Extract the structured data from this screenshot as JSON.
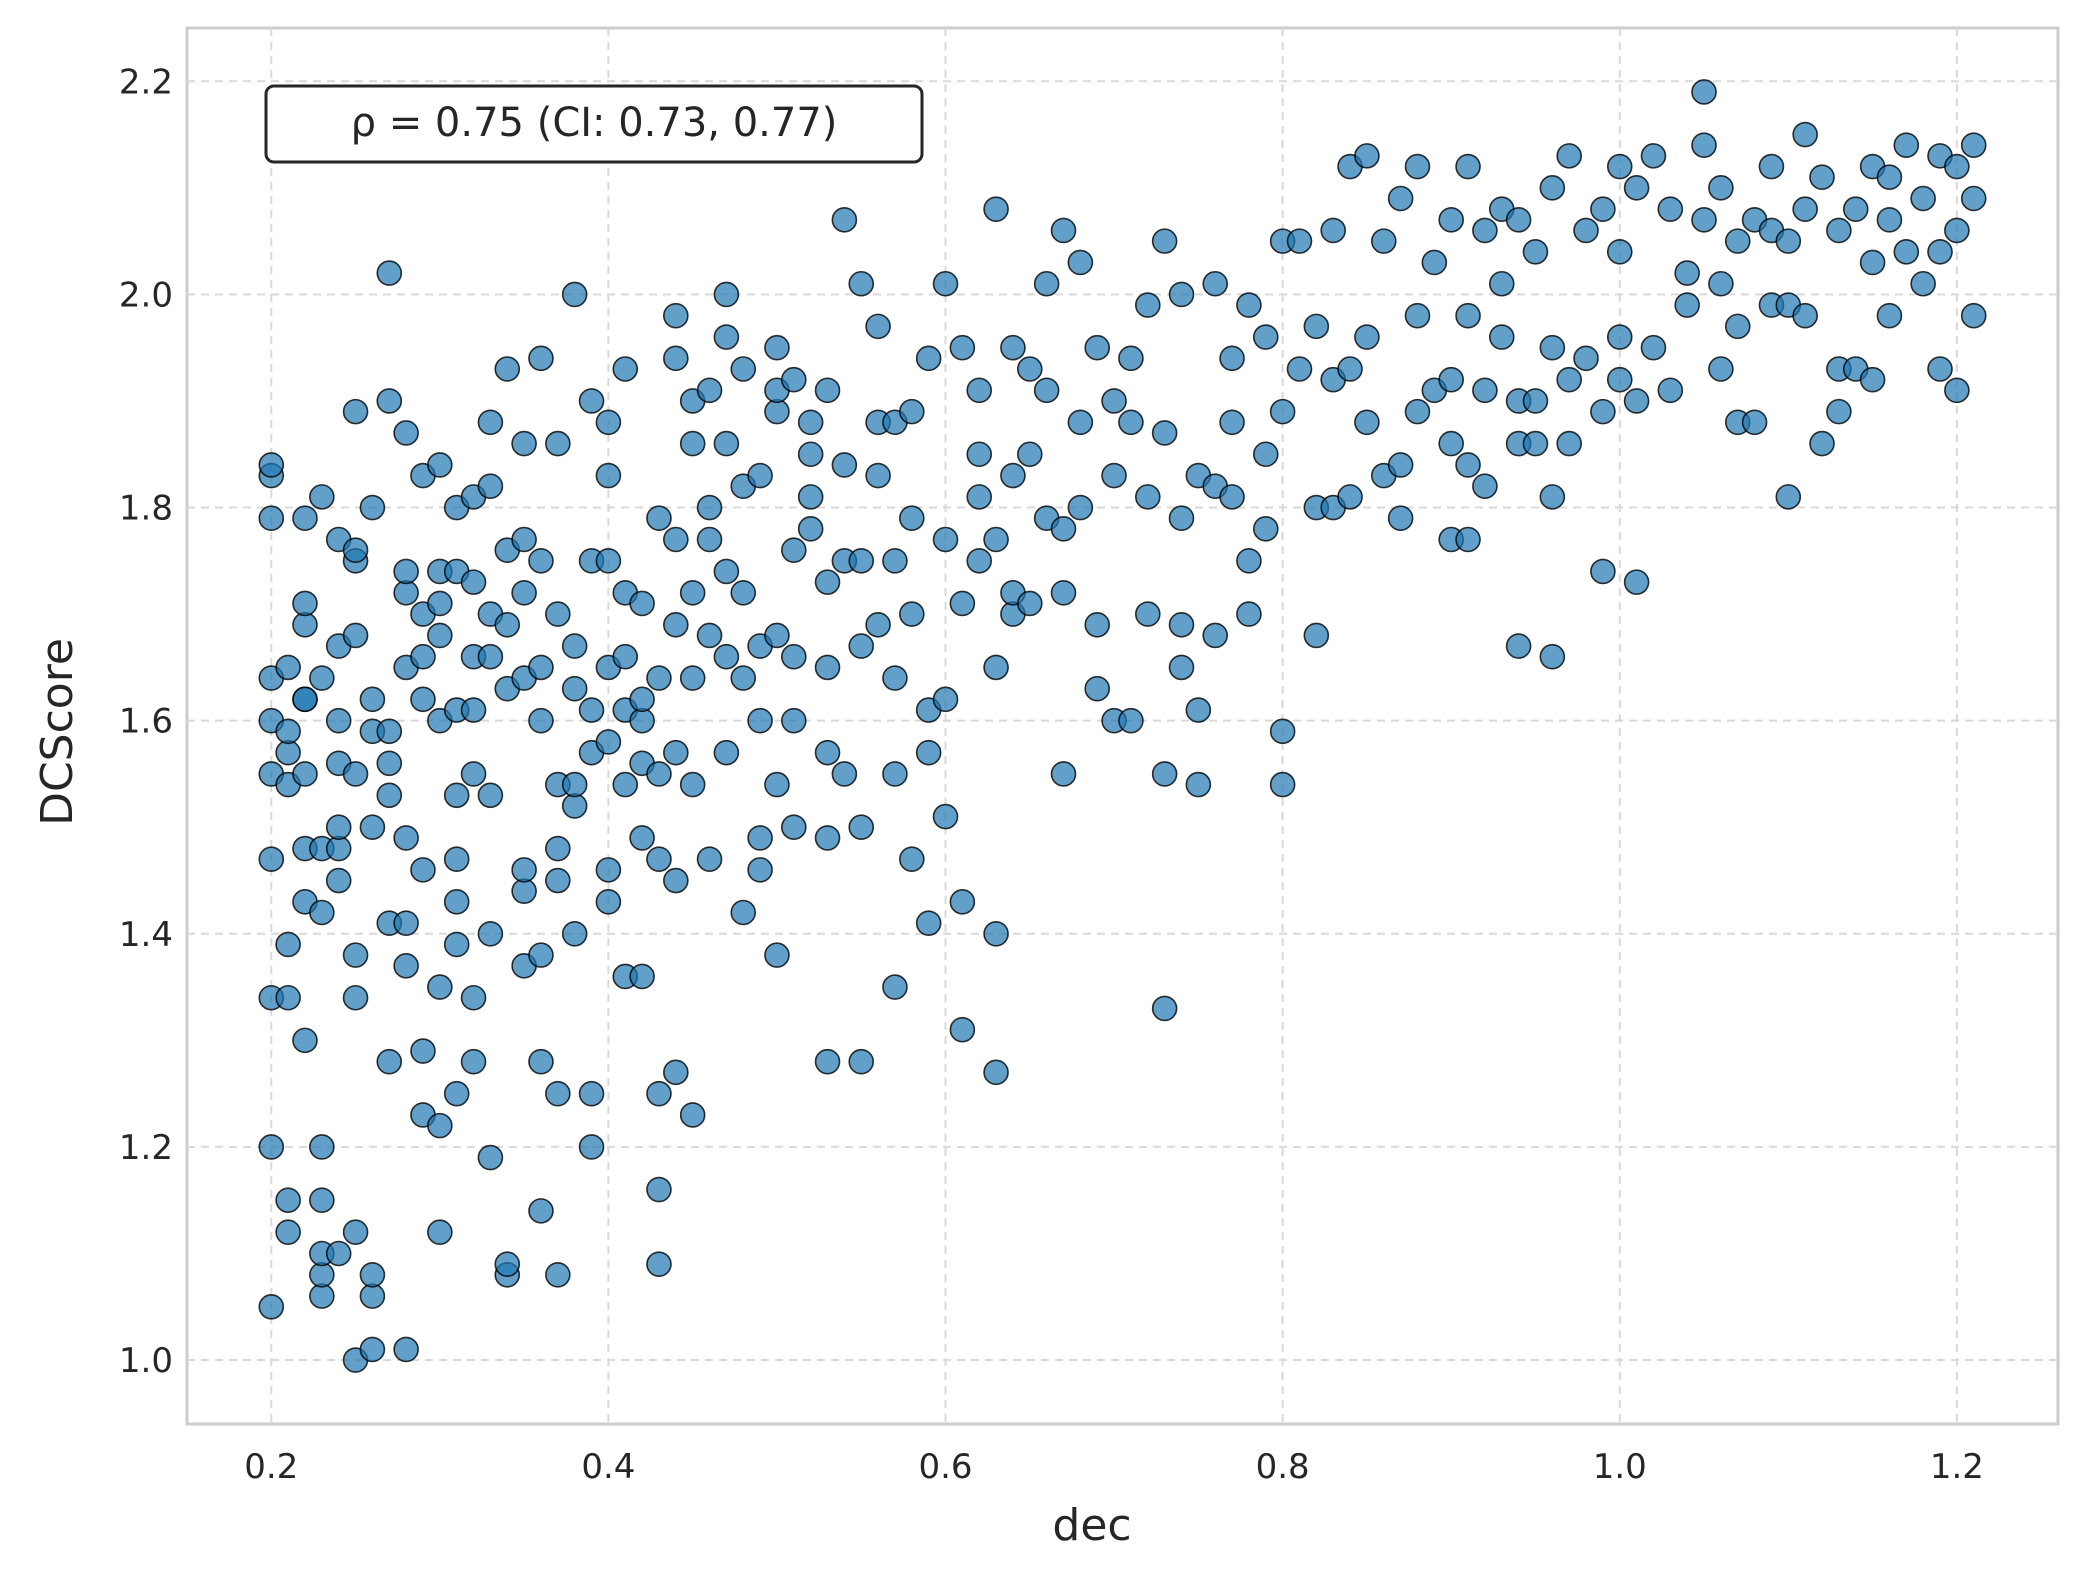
{
  "chart_data": {
    "type": "scatter",
    "title": "",
    "xlabel": "dec",
    "ylabel": "DCScore",
    "xlim": [
      0.15,
      1.26
    ],
    "ylim": [
      0.94,
      2.25
    ],
    "x_ticks": [
      0.2,
      0.4,
      0.6,
      0.8,
      1.0,
      1.2
    ],
    "x_tick_labels": [
      "0.2",
      "0.4",
      "0.6",
      "0.8",
      "1.0",
      "1.2"
    ],
    "y_ticks": [
      1.0,
      1.2,
      1.4,
      1.6,
      1.8,
      2.0,
      2.2
    ],
    "y_tick_labels": [
      "1.0",
      "1.2",
      "1.4",
      "1.6",
      "1.8",
      "2.0",
      "2.2"
    ],
    "grid": true,
    "annotation": "ρ = 0.75  (CI: 0.73, 0.77)",
    "colors": {
      "marker_fill": "#1f77b4",
      "marker_edge": "#000000",
      "grid": "#d9d9d9",
      "spine": "#cccccc"
    },
    "series": [
      {
        "x": [
          0.2,
          0.2,
          0.2,
          0.2,
          0.2,
          0.2,
          0.2,
          0.2,
          0.2,
          0.2,
          0.21,
          0.21,
          0.21,
          0.21,
          0.21,
          0.21,
          0.21,
          0.21,
          0.22,
          0.22,
          0.22,
          0.22,
          0.22,
          0.22,
          0.22,
          0.22,
          0.22,
          0.23,
          0.23,
          0.23,
          0.23,
          0.23,
          0.23,
          0.23,
          0.23,
          0.23,
          0.24,
          0.24,
          0.24,
          0.24,
          0.24,
          0.24,
          0.24,
          0.24,
          0.25,
          0.25,
          0.25,
          0.25,
          0.25,
          0.25,
          0.25,
          0.25,
          0.25,
          0.26,
          0.26,
          0.26,
          0.26,
          0.26,
          0.26,
          0.26,
          0.27,
          0.27,
          0.27,
          0.27,
          0.27,
          0.27,
          0.27,
          0.28,
          0.28,
          0.28,
          0.28,
          0.28,
          0.28,
          0.28,
          0.28,
          0.29,
          0.29,
          0.29,
          0.29,
          0.29,
          0.29,
          0.29,
          0.3,
          0.3,
          0.3,
          0.3,
          0.3,
          0.3,
          0.3,
          0.3,
          0.31,
          0.31,
          0.31,
          0.31,
          0.31,
          0.31,
          0.31,
          0.31,
          0.32,
          0.32,
          0.32,
          0.32,
          0.32,
          0.32,
          0.32,
          0.33,
          0.33,
          0.33,
          0.33,
          0.33,
          0.33,
          0.33,
          0.34,
          0.34,
          0.34,
          0.34,
          0.34,
          0.34,
          0.35,
          0.35,
          0.35,
          0.35,
          0.35,
          0.35,
          0.35,
          0.36,
          0.36,
          0.36,
          0.36,
          0.36,
          0.36,
          0.36,
          0.37,
          0.37,
          0.37,
          0.37,
          0.37,
          0.37,
          0.37,
          0.38,
          0.38,
          0.38,
          0.38,
          0.38,
          0.38,
          0.39,
          0.39,
          0.39,
          0.39,
          0.39,
          0.39,
          0.4,
          0.4,
          0.4,
          0.4,
          0.4,
          0.4,
          0.4,
          0.41,
          0.41,
          0.41,
          0.41,
          0.41,
          0.41,
          0.42,
          0.42,
          0.42,
          0.42,
          0.42,
          0.42,
          0.43,
          0.43,
          0.43,
          0.43,
          0.43,
          0.43,
          0.43,
          0.44,
          0.44,
          0.44,
          0.44,
          0.44,
          0.44,
          0.44,
          0.45,
          0.45,
          0.45,
          0.45,
          0.45,
          0.45,
          0.46,
          0.46,
          0.46,
          0.46,
          0.46,
          0.47,
          0.47,
          0.47,
          0.47,
          0.47,
          0.47,
          0.48,
          0.48,
          0.48,
          0.48,
          0.48,
          0.49,
          0.49,
          0.49,
          0.49,
          0.49,
          0.5,
          0.5,
          0.5,
          0.5,
          0.5,
          0.5,
          0.51,
          0.51,
          0.51,
          0.51,
          0.51,
          0.52,
          0.52,
          0.52,
          0.52,
          0.53,
          0.53,
          0.53,
          0.53,
          0.53,
          0.53,
          0.54,
          0.54,
          0.54,
          0.54,
          0.55,
          0.55,
          0.55,
          0.55,
          0.55,
          0.56,
          0.56,
          0.56,
          0.56,
          0.57,
          0.57,
          0.57,
          0.57,
          0.57,
          0.58,
          0.58,
          0.58,
          0.58,
          0.59,
          0.59,
          0.59,
          0.59,
          0.6,
          0.6,
          0.6,
          0.6,
          0.61,
          0.61,
          0.61,
          0.61,
          0.62,
          0.62,
          0.62,
          0.62,
          0.63,
          0.63,
          0.63,
          0.63,
          0.63,
          0.64,
          0.64,
          0.64,
          0.64,
          0.65,
          0.65,
          0.65,
          0.66,
          0.66,
          0.66,
          0.67,
          0.67,
          0.67,
          0.67,
          0.68,
          0.68,
          0.68,
          0.69,
          0.69,
          0.69,
          0.7,
          0.7,
          0.7,
          0.71,
          0.71,
          0.71,
          0.72,
          0.72,
          0.72,
          0.73,
          0.73,
          0.73,
          0.73,
          0.74,
          0.74,
          0.74,
          0.74,
          0.75,
          0.75,
          0.75,
          0.76,
          0.76,
          0.76,
          0.77,
          0.77,
          0.77,
          0.78,
          0.78,
          0.78,
          0.79,
          0.79,
          0.79,
          0.8,
          0.8,
          0.8,
          0.8,
          0.81,
          0.81,
          0.82,
          0.82,
          0.82,
          0.83,
          0.83,
          0.83,
          0.84,
          0.84,
          0.84,
          0.85,
          0.85,
          0.85,
          0.86,
          0.86,
          0.87,
          0.87,
          0.87,
          0.88,
          0.88,
          0.88,
          0.89,
          0.89,
          0.9,
          0.9,
          0.9,
          0.9,
          0.91,
          0.91,
          0.91,
          0.91,
          0.92,
          0.92,
          0.92,
          0.93,
          0.93,
          0.93,
          0.94,
          0.94,
          0.94,
          0.94,
          0.95,
          0.95,
          0.95,
          0.96,
          0.96,
          0.96,
          0.96,
          0.97,
          0.97,
          0.97,
          0.98,
          0.98,
          0.99,
          0.99,
          0.99,
          1.0,
          1.0,
          1.0,
          1.0,
          1.01,
          1.01,
          1.01,
          1.02,
          1.02,
          1.03,
          1.03,
          1.04,
          1.04,
          1.05,
          1.05,
          1.05,
          1.06,
          1.06,
          1.06,
          1.07,
          1.07,
          1.07,
          1.08,
          1.08,
          1.09,
          1.09,
          1.09,
          1.1,
          1.1,
          1.1,
          1.11,
          1.11,
          1.11,
          1.12,
          1.12,
          1.13,
          1.13,
          1.13,
          1.14,
          1.14,
          1.15,
          1.15,
          1.15,
          1.16,
          1.16,
          1.16,
          1.17,
          1.17,
          1.18,
          1.18,
          1.19,
          1.19,
          1.19,
          1.2,
          1.2,
          1.2,
          1.21,
          1.21,
          1.21
        ],
        "y": [
          1.05,
          1.2,
          1.34,
          1.47,
          1.55,
          1.6,
          1.64,
          1.79,
          1.83,
          1.84,
          1.12,
          1.15,
          1.34,
          1.39,
          1.54,
          1.57,
          1.59,
          1.65,
          1.3,
          1.43,
          1.48,
          1.55,
          1.62,
          1.69,
          1.71,
          1.79,
          1.62,
          1.06,
          1.08,
          1.1,
          1.15,
          1.2,
          1.42,
          1.48,
          1.64,
          1.81,
          1.1,
          1.45,
          1.48,
          1.5,
          1.56,
          1.6,
          1.67,
          1.77,
          1.0,
          1.12,
          1.34,
          1.38,
          1.55,
          1.68,
          1.75,
          1.76,
          1.89,
          1.01,
          1.06,
          1.08,
          1.5,
          1.59,
          1.62,
          1.8,
          1.28,
          1.41,
          1.53,
          1.56,
          1.59,
          1.9,
          2.02,
          1.01,
          1.37,
          1.41,
          1.49,
          1.65,
          1.72,
          1.74,
          1.87,
          1.23,
          1.29,
          1.46,
          1.62,
          1.66,
          1.7,
          1.83,
          1.12,
          1.22,
          1.35,
          1.6,
          1.68,
          1.71,
          1.74,
          1.84,
          1.25,
          1.39,
          1.43,
          1.47,
          1.53,
          1.61,
          1.74,
          1.8,
          1.28,
          1.34,
          1.55,
          1.61,
          1.66,
          1.73,
          1.81,
          1.19,
          1.4,
          1.53,
          1.66,
          1.7,
          1.82,
          1.88,
          1.08,
          1.09,
          1.63,
          1.69,
          1.76,
          1.93,
          1.37,
          1.44,
          1.46,
          1.64,
          1.72,
          1.77,
          1.86,
          1.14,
          1.28,
          1.38,
          1.6,
          1.65,
          1.75,
          1.94,
          1.08,
          1.25,
          1.45,
          1.48,
          1.54,
          1.7,
          1.86,
          1.4,
          1.52,
          1.54,
          1.63,
          1.67,
          2.0,
          1.2,
          1.25,
          1.57,
          1.61,
          1.75,
          1.9,
          1.43,
          1.46,
          1.58,
          1.65,
          1.75,
          1.83,
          1.88,
          1.36,
          1.54,
          1.61,
          1.66,
          1.72,
          1.93,
          1.36,
          1.49,
          1.56,
          1.6,
          1.62,
          1.71,
          1.09,
          1.16,
          1.25,
          1.47,
          1.55,
          1.64,
          1.79,
          1.27,
          1.45,
          1.57,
          1.69,
          1.77,
          1.94,
          1.98,
          1.23,
          1.54,
          1.64,
          1.72,
          1.86,
          1.9,
          1.47,
          1.68,
          1.77,
          1.8,
          1.91,
          1.57,
          1.66,
          1.74,
          1.86,
          1.96,
          2.0,
          1.42,
          1.64,
          1.72,
          1.82,
          1.93,
          1.46,
          1.49,
          1.6,
          1.67,
          1.83,
          1.38,
          1.54,
          1.68,
          1.89,
          1.91,
          1.95,
          1.5,
          1.6,
          1.66,
          1.76,
          1.92,
          1.78,
          1.81,
          1.85,
          1.88,
          1.28,
          1.49,
          1.57,
          1.65,
          1.73,
          1.91,
          1.55,
          1.75,
          1.84,
          2.07,
          1.28,
          1.5,
          1.67,
          1.75,
          2.01,
          1.69,
          1.83,
          1.97,
          1.88,
          1.35,
          1.55,
          1.64,
          1.75,
          1.88,
          1.47,
          1.7,
          1.79,
          1.89,
          1.41,
          1.57,
          1.61,
          1.94,
          1.51,
          1.62,
          1.77,
          2.01,
          1.31,
          1.43,
          1.71,
          1.95,
          1.75,
          1.81,
          1.85,
          1.91,
          1.27,
          1.4,
          1.65,
          1.77,
          2.08,
          1.7,
          1.72,
          1.83,
          1.95,
          1.71,
          1.85,
          1.93,
          1.79,
          1.91,
          2.01,
          1.55,
          1.72,
          1.78,
          2.06,
          1.8,
          1.88,
          2.03,
          1.63,
          1.69,
          1.95,
          1.6,
          1.83,
          1.9,
          1.6,
          1.88,
          1.94,
          1.7,
          1.81,
          1.99,
          1.33,
          1.55,
          1.87,
          2.05,
          1.65,
          1.69,
          1.79,
          2.0,
          1.54,
          1.61,
          1.83,
          1.68,
          1.82,
          2.01,
          1.81,
          1.88,
          1.94,
          1.7,
          1.75,
          1.99,
          1.78,
          1.85,
          1.96,
          1.54,
          1.59,
          1.89,
          2.05,
          1.93,
          2.05,
          1.68,
          1.8,
          1.97,
          1.8,
          1.92,
          2.06,
          1.81,
          1.93,
          2.12,
          1.88,
          1.96,
          2.13,
          1.83,
          2.05,
          1.79,
          1.84,
          2.09,
          1.89,
          1.98,
          2.12,
          1.91,
          2.03,
          1.77,
          1.86,
          1.92,
          2.07,
          1.77,
          1.84,
          1.98,
          2.12,
          1.82,
          1.91,
          2.06,
          1.96,
          2.01,
          2.08,
          1.67,
          1.86,
          1.9,
          2.07,
          1.86,
          1.9,
          2.04,
          1.66,
          1.81,
          1.95,
          2.1,
          1.86,
          1.92,
          2.13,
          1.94,
          2.06,
          1.74,
          1.89,
          2.08,
          1.92,
          1.96,
          2.04,
          2.12,
          1.73,
          1.9,
          2.1,
          1.95,
          2.13,
          1.91,
          2.08,
          1.99,
          2.02,
          2.07,
          2.14,
          2.19,
          1.93,
          2.01,
          2.1,
          1.88,
          1.97,
          2.05,
          1.88,
          2.07,
          1.99,
          2.06,
          2.12,
          1.81,
          1.99,
          2.05,
          1.98,
          2.08,
          2.15,
          1.86,
          2.11,
          1.89,
          1.93,
          2.06,
          1.93,
          2.08,
          1.92,
          2.03,
          2.12,
          1.98,
          2.07,
          2.11,
          2.04,
          2.14,
          2.01,
          2.09,
          1.93,
          2.04,
          2.13,
          1.91,
          2.06,
          2.12,
          1.98,
          2.09,
          2.14
        ]
      }
    ]
  }
}
